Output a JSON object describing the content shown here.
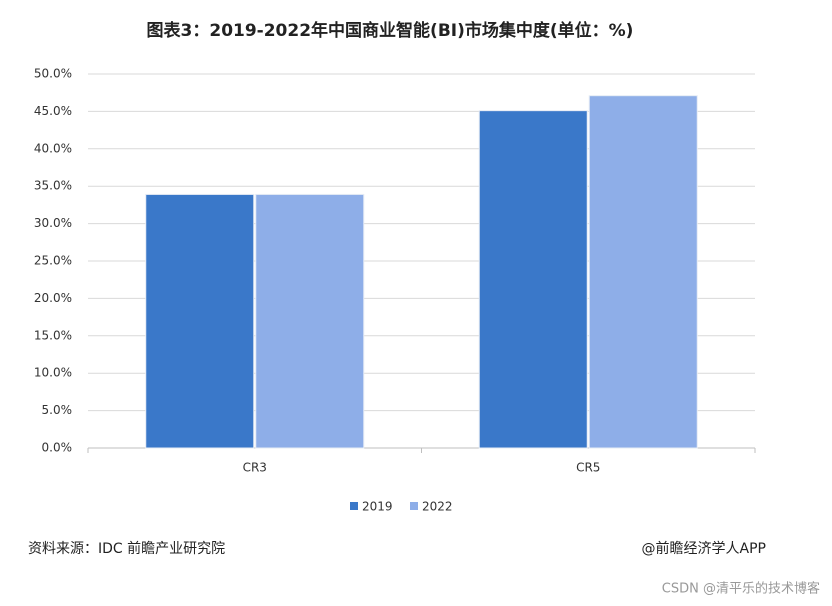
{
  "chart_data": {
    "type": "bar",
    "title": "图表3：2019-2022年中国商业智能(BI)市场集中度(单位：%)",
    "categories": [
      "CR3",
      "CR5"
    ],
    "series": [
      {
        "name": "2019",
        "color": "#3a78c9",
        "values": [
          33.9,
          45.1
        ]
      },
      {
        "name": "2022",
        "color": "#8eaee8",
        "values": [
          33.9,
          47.1
        ]
      }
    ],
    "ylim": [
      0,
      50
    ],
    "yticks": [
      {
        "value": 0,
        "label": "0.0%"
      },
      {
        "value": 5,
        "label": "5.0%"
      },
      {
        "value": 10,
        "label": "10.0%"
      },
      {
        "value": 15,
        "label": "15.0%"
      },
      {
        "value": 20,
        "label": "20.0%"
      },
      {
        "value": 25,
        "label": "25.0%"
      },
      {
        "value": 30,
        "label": "30.0%"
      },
      {
        "value": 35,
        "label": "35.0%"
      },
      {
        "value": 40,
        "label": "40.0%"
      },
      {
        "value": 45,
        "label": "45.0%"
      },
      {
        "value": 50,
        "label": "50.0%"
      }
    ],
    "grid": true,
    "legend": "bottom",
    "source": "资料来源：IDC 前瞻产业研究院",
    "credit": "@前瞻经济学人APP",
    "watermark": "CSDN @清平乐的技术博客"
  }
}
